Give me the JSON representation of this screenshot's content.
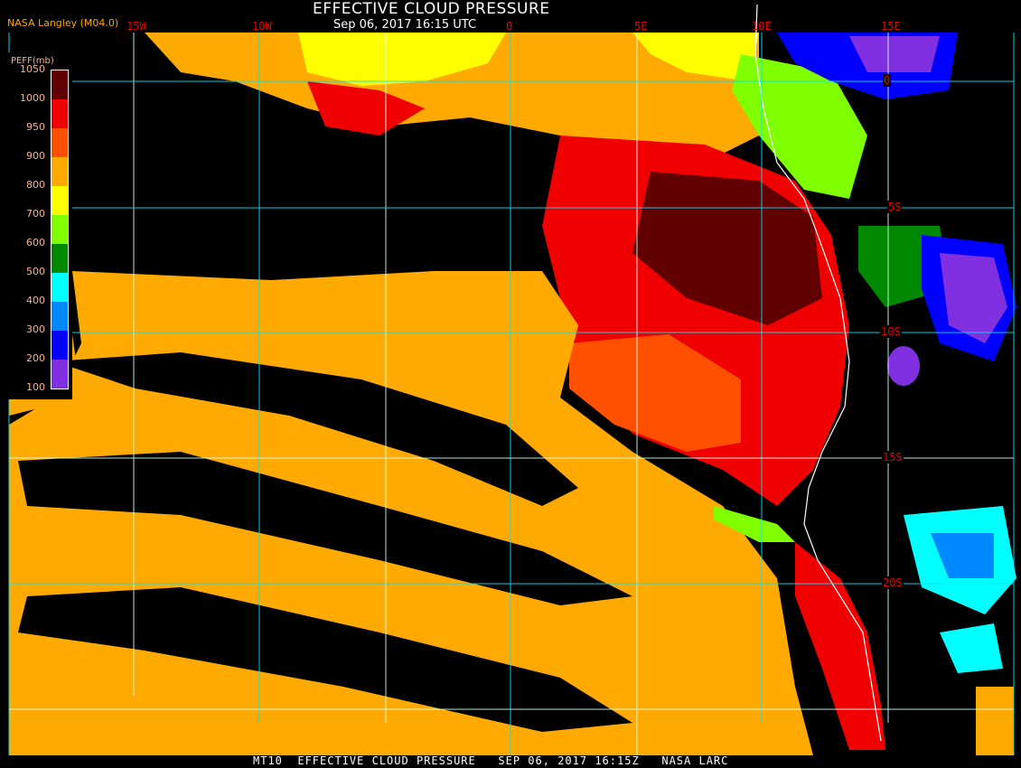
{
  "header": {
    "title": "EFFECTIVE CLOUD PRESSURE",
    "subtitle": "Sep 06, 2017 16:15 UTC",
    "credit": "NASA Langley (M04.0)"
  },
  "longitude_labels": [
    "15W",
    "10W",
    "5W",
    "0",
    "5E",
    "10E",
    "15E"
  ],
  "latitude_labels": [
    "0",
    "5S",
    "10S",
    "15S",
    "20S"
  ],
  "legend": {
    "title": "PEFF(mb)",
    "ticks": [
      "1050",
      "1000",
      "950",
      "900",
      "800",
      "700",
      "600",
      "500",
      "400",
      "300",
      "200",
      "100"
    ],
    "colors": [
      "#600000",
      "#f00000",
      "#ff5000",
      "#ffaa00",
      "#ffff00",
      "#80ff00",
      "#008800",
      "#00ffff",
      "#0088ff",
      "#0000ff",
      "#8030e0"
    ]
  },
  "footer": "MT10  EFFECTIVE CLOUD PRESSURE   SEP 06, 2017 16:15Z   NASA LARC",
  "colors": {
    "grid": "#00e5ff",
    "coastline": "#ffffff",
    "background": "#000000"
  }
}
